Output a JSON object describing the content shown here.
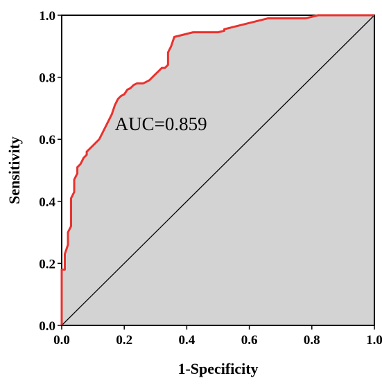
{
  "chart_data": {
    "type": "line",
    "title": "",
    "xlabel": "1-Specificity",
    "ylabel": "Sensitivity",
    "xlim": [
      0,
      1
    ],
    "ylim": [
      0,
      1
    ],
    "x_ticks": [
      "0.0",
      "0.2",
      "0.4",
      "0.6",
      "0.8",
      "1.0"
    ],
    "y_ticks": [
      "0.0",
      "0.2",
      "0.4",
      "0.6",
      "0.8",
      "1.0"
    ],
    "grid": false,
    "legend": "none",
    "annotations": [
      {
        "text": "AUC=0.859",
        "x": 0.17,
        "y": 0.63
      }
    ],
    "area_fill": "#d3d3d3",
    "roc_color": "#e8322e",
    "reference_color": "#000000",
    "series": [
      {
        "x": [
          0,
          0,
          0.01,
          0.01,
          0.02,
          0.02,
          0.03,
          0.03,
          0.04,
          0.04,
          0.05,
          0.05,
          0.06,
          0.07,
          0.08,
          0.08,
          0.09,
          0.1,
          0.11,
          0.12,
          0.13,
          0.14,
          0.15,
          0.16,
          0.17,
          0.18,
          0.19,
          0.2,
          0.21,
          0.22,
          0.23,
          0.24,
          0.25,
          0.26,
          0.27,
          0.28,
          0.29,
          0.3,
          0.31,
          0.32,
          0.33,
          0.34,
          0.34,
          0.35,
          0.36,
          0.38,
          0.4,
          0.42,
          0.44,
          0.46,
          0.48,
          0.5,
          0.52,
          0.52,
          0.54,
          0.56,
          0.58,
          0.6,
          0.62,
          0.64,
          0.66,
          0.68,
          0.7,
          0.72,
          0.74,
          0.76,
          0.78,
          0.8,
          0.82,
          0.84,
          0.86,
          0.88,
          0.9,
          0.92,
          0.94,
          0.96,
          0.98,
          1.0
        ],
        "y": [
          0,
          0.18,
          0.18,
          0.23,
          0.26,
          0.3,
          0.32,
          0.41,
          0.43,
          0.47,
          0.49,
          0.51,
          0.52,
          0.54,
          0.55,
          0.56,
          0.57,
          0.58,
          0.59,
          0.6,
          0.62,
          0.64,
          0.66,
          0.68,
          0.71,
          0.73,
          0.74,
          0.745,
          0.76,
          0.765,
          0.775,
          0.78,
          0.78,
          0.78,
          0.785,
          0.79,
          0.8,
          0.81,
          0.82,
          0.83,
          0.83,
          0.84,
          0.88,
          0.9,
          0.93,
          0.935,
          0.94,
          0.945,
          0.945,
          0.945,
          0.945,
          0.945,
          0.95,
          0.955,
          0.96,
          0.965,
          0.97,
          0.975,
          0.98,
          0.985,
          0.99,
          0.99,
          0.99,
          0.99,
          0.99,
          0.99,
          0.99,
          0.995,
          1.0,
          1.0,
          1.0,
          1.0,
          1.0,
          1.0,
          1.0,
          1.0,
          1.0,
          1.0
        ]
      },
      {
        "x": [
          0,
          1
        ],
        "y": [
          0,
          1
        ]
      }
    ]
  }
}
